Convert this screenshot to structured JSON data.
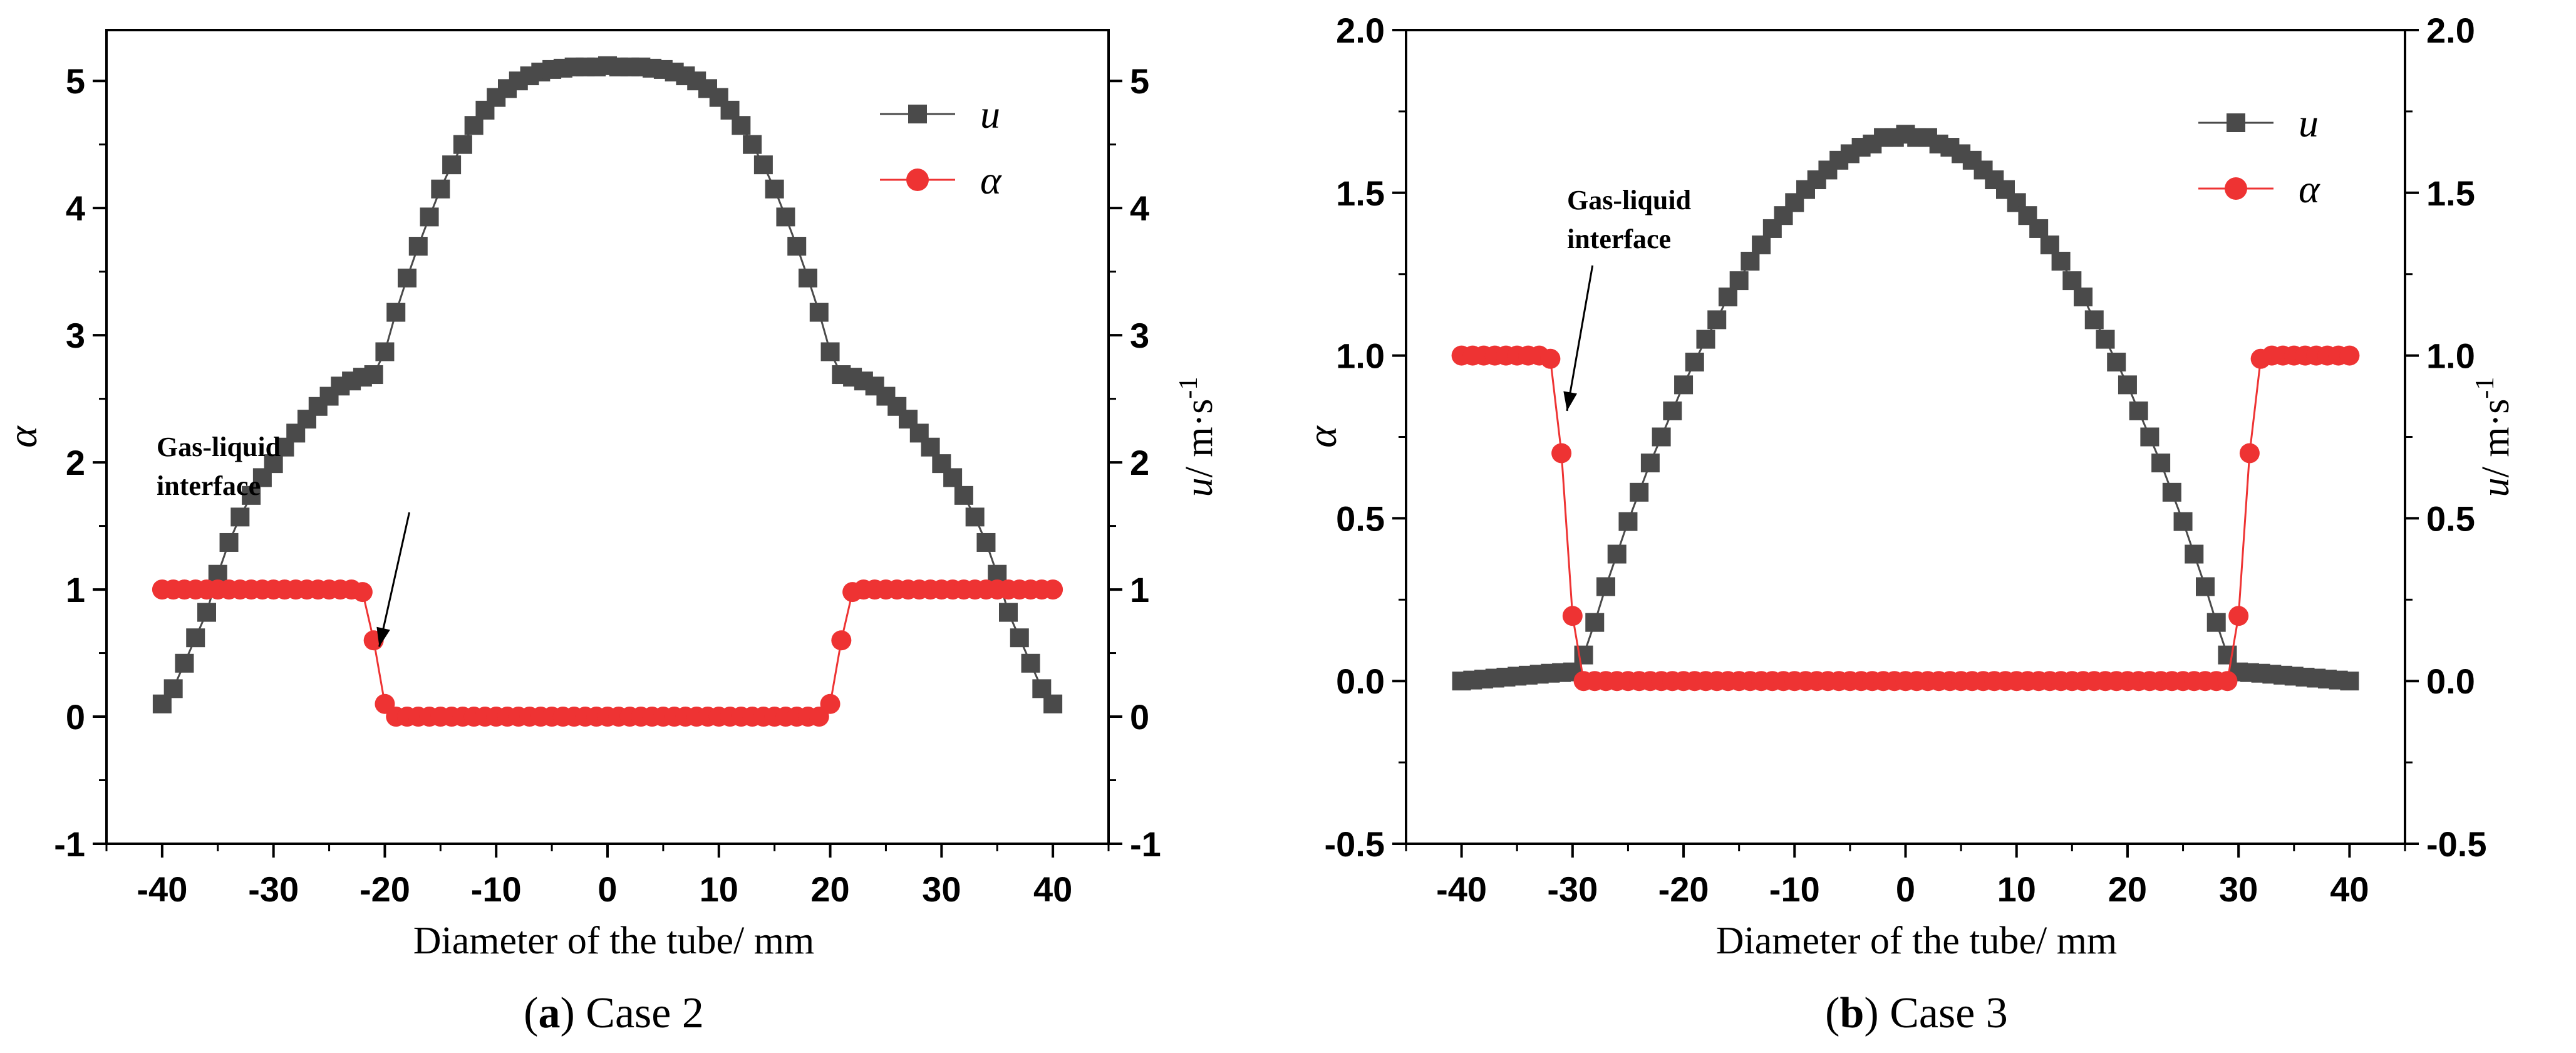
{
  "figure": {
    "panels": [
      "a",
      "b"
    ]
  },
  "chart_data": [
    {
      "type": "line",
      "panel_letter": "a",
      "caption_rest": " Case 2",
      "xlabel": "Diameter of the tube/ mm",
      "ylabel_left": "α",
      "ylabel_right_var": "u",
      "ylabel_right_unit": "/ m·s",
      "ylabel_right_exp": "-1",
      "xlim": [
        -45,
        45
      ],
      "ylim": [
        -1,
        5.4
      ],
      "xticks": [
        -40,
        -30,
        -20,
        -10,
        0,
        10,
        20,
        30,
        40
      ],
      "xtick_labels": [
        "-40",
        "-30",
        "-20",
        "-10",
        "0",
        "10",
        "20",
        "30",
        "40"
      ],
      "yticks": [
        -1,
        0,
        1,
        2,
        3,
        4,
        5
      ],
      "ytick_labels_left": [
        "-1",
        "0",
        "1",
        "2",
        "3",
        "4",
        "5"
      ],
      "ytick_labels_right": [
        "-1",
        "0",
        "1",
        "2",
        "3",
        "4",
        "5"
      ],
      "legend": [
        {
          "label": "u",
          "color": "#4a4a4a",
          "marker": "square"
        },
        {
          "label": "α",
          "color": "#ee3333",
          "marker": "circle"
        }
      ],
      "annotation": {
        "line1": "Gas-liquid",
        "line2": "interface",
        "x": -20.5,
        "y": 0.55
      },
      "series": [
        {
          "name": "u",
          "color": "#4a4a4a",
          "marker": "square",
          "x": [
            -40,
            -39,
            -38,
            -37,
            -36,
            -35,
            -34,
            -33,
            -32,
            -31,
            -30,
            -29,
            -28,
            -27,
            -26,
            -25,
            -24,
            -23,
            -22,
            -21,
            -20,
            -19,
            -18,
            -17,
            -16,
            -15,
            -14,
            -13,
            -12,
            -11,
            -10,
            -9,
            -8,
            -7,
            -6,
            -5,
            -4,
            -3,
            -2,
            -1,
            0,
            1,
            2,
            3,
            4,
            5,
            6,
            7,
            8,
            9,
            10,
            11,
            12,
            13,
            14,
            15,
            16,
            17,
            18,
            19,
            20,
            21,
            22,
            23,
            24,
            25,
            26,
            27,
            28,
            29,
            30,
            31,
            32,
            33,
            34,
            35,
            36,
            37,
            38,
            39,
            40
          ],
          "values": [
            0.1,
            0.22,
            0.42,
            0.62,
            0.82,
            1.12,
            1.37,
            1.57,
            1.74,
            1.88,
            1.99,
            2.12,
            2.23,
            2.34,
            2.44,
            2.52,
            2.6,
            2.64,
            2.67,
            2.69,
            2.87,
            3.18,
            3.45,
            3.7,
            3.93,
            4.15,
            4.34,
            4.5,
            4.65,
            4.77,
            4.87,
            4.94,
            5.0,
            5.04,
            5.07,
            5.09,
            5.1,
            5.11,
            5.11,
            5.11,
            5.12,
            5.11,
            5.11,
            5.11,
            5.1,
            5.09,
            5.07,
            5.04,
            5.0,
            4.94,
            4.87,
            4.77,
            4.65,
            4.5,
            4.34,
            4.15,
            3.93,
            3.7,
            3.45,
            3.18,
            2.87,
            2.69,
            2.67,
            2.64,
            2.6,
            2.52,
            2.44,
            2.34,
            2.23,
            2.12,
            1.99,
            1.88,
            1.74,
            1.57,
            1.37,
            1.12,
            0.82,
            0.62,
            0.42,
            0.22,
            0.1
          ]
        },
        {
          "name": "α",
          "color": "#ee3333",
          "marker": "circle",
          "x": [
            -40,
            -39,
            -38,
            -37,
            -36,
            -35,
            -34,
            -33,
            -32,
            -31,
            -30,
            -29,
            -28,
            -27,
            -26,
            -25,
            -24,
            -23,
            -22,
            -21,
            -20,
            -19,
            -18,
            -17,
            -16,
            -15,
            -14,
            -13,
            -12,
            -11,
            -10,
            -9,
            -8,
            -7,
            -6,
            -5,
            -4,
            -3,
            -2,
            -1,
            0,
            1,
            2,
            3,
            4,
            5,
            6,
            7,
            8,
            9,
            10,
            11,
            12,
            13,
            14,
            15,
            16,
            17,
            18,
            19,
            20,
            21,
            22,
            23,
            24,
            25,
            26,
            27,
            28,
            29,
            30,
            31,
            32,
            33,
            34,
            35,
            36,
            37,
            38,
            39,
            40
          ],
          "values": [
            1,
            1,
            1,
            1,
            1,
            1,
            1,
            1,
            1,
            1,
            1,
            1,
            1,
            1,
            1,
            1,
            1,
            1,
            0.98,
            0.6,
            0.1,
            0,
            0,
            0,
            0,
            0,
            0,
            0,
            0,
            0,
            0,
            0,
            0,
            0,
            0,
            0,
            0,
            0,
            0,
            0,
            0,
            0,
            0,
            0,
            0,
            0,
            0,
            0,
            0,
            0,
            0,
            0,
            0,
            0,
            0,
            0,
            0,
            0,
            0,
            0,
            0.1,
            0.6,
            0.98,
            1,
            1,
            1,
            1,
            1,
            1,
            1,
            1,
            1,
            1,
            1,
            1,
            1,
            1,
            1,
            1,
            1,
            1
          ]
        }
      ]
    },
    {
      "type": "line",
      "panel_letter": "b",
      "caption_rest": " Case 3",
      "xlabel": "Diameter of the tube/ mm",
      "ylabel_left": "α",
      "ylabel_right_var": "u",
      "ylabel_right_unit": "/ m·s",
      "ylabel_right_exp": "-1",
      "xlim": [
        -45,
        45
      ],
      "ylim": [
        -0.5,
        2.0
      ],
      "xticks": [
        -40,
        -30,
        -20,
        -10,
        0,
        10,
        20,
        30,
        40
      ],
      "xtick_labels": [
        "-40",
        "-30",
        "-20",
        "-10",
        "0",
        "10",
        "20",
        "30",
        "40"
      ],
      "yticks": [
        -0.5,
        0.0,
        0.5,
        1.0,
        1.5,
        2.0
      ],
      "ytick_labels_left": [
        "-0.5",
        "0.0",
        "0.5",
        "1.0",
        "1.5",
        "2.0"
      ],
      "ytick_labels_right": [
        "-0.5",
        "0.0",
        "0.5",
        "1.0",
        "1.5",
        "2.0"
      ],
      "legend": [
        {
          "label": "u",
          "color": "#4a4a4a",
          "marker": "square"
        },
        {
          "label": "α",
          "color": "#ee3333",
          "marker": "circle"
        }
      ],
      "annotation": {
        "line1": "Gas-liquid",
        "line2": "interface",
        "x": -30.5,
        "y": 0.83
      },
      "series": [
        {
          "name": "u",
          "color": "#4a4a4a",
          "marker": "square",
          "x": [
            -40,
            -39,
            -38,
            -37,
            -36,
            -35,
            -34,
            -33,
            -32,
            -31,
            -30,
            -29,
            -28,
            -27,
            -26,
            -25,
            -24,
            -23,
            -22,
            -21,
            -20,
            -19,
            -18,
            -17,
            -16,
            -15,
            -14,
            -13,
            -12,
            -11,
            -10,
            -9,
            -8,
            -7,
            -6,
            -5,
            -4,
            -3,
            -2,
            -1,
            0,
            1,
            2,
            3,
            4,
            5,
            6,
            7,
            8,
            9,
            10,
            11,
            12,
            13,
            14,
            15,
            16,
            17,
            18,
            19,
            20,
            21,
            22,
            23,
            24,
            25,
            26,
            27,
            28,
            29,
            30,
            31,
            32,
            33,
            34,
            35,
            36,
            37,
            38,
            39,
            40
          ],
          "values": [
            0.0,
            0.003,
            0.006,
            0.009,
            0.012,
            0.015,
            0.018,
            0.021,
            0.024,
            0.026,
            0.028,
            0.08,
            0.18,
            0.29,
            0.39,
            0.49,
            0.58,
            0.67,
            0.75,
            0.83,
            0.91,
            0.98,
            1.05,
            1.11,
            1.18,
            1.23,
            1.29,
            1.34,
            1.39,
            1.43,
            1.47,
            1.51,
            1.54,
            1.57,
            1.6,
            1.62,
            1.64,
            1.65,
            1.67,
            1.67,
            1.68,
            1.67,
            1.67,
            1.65,
            1.64,
            1.62,
            1.6,
            1.57,
            1.54,
            1.51,
            1.47,
            1.43,
            1.39,
            1.34,
            1.29,
            1.23,
            1.18,
            1.11,
            1.05,
            0.98,
            0.91,
            0.83,
            0.75,
            0.67,
            0.58,
            0.49,
            0.39,
            0.29,
            0.18,
            0.08,
            0.028,
            0.026,
            0.024,
            0.021,
            0.018,
            0.015,
            0.012,
            0.009,
            0.006,
            0.003,
            0.0
          ]
        },
        {
          "name": "α",
          "color": "#ee3333",
          "marker": "circle",
          "x": [
            -40,
            -39,
            -38,
            -37,
            -36,
            -35,
            -34,
            -33,
            -32,
            -31,
            -30,
            -29,
            -28,
            -27,
            -26,
            -25,
            -24,
            -23,
            -22,
            -21,
            -20,
            -19,
            -18,
            -17,
            -16,
            -15,
            -14,
            -13,
            -12,
            -11,
            -10,
            -9,
            -8,
            -7,
            -6,
            -5,
            -4,
            -3,
            -2,
            -1,
            0,
            1,
            2,
            3,
            4,
            5,
            6,
            7,
            8,
            9,
            10,
            11,
            12,
            13,
            14,
            15,
            16,
            17,
            18,
            19,
            20,
            21,
            22,
            23,
            24,
            25,
            26,
            27,
            28,
            29,
            30,
            31,
            32,
            33,
            34,
            35,
            36,
            37,
            38,
            39,
            40
          ],
          "values": [
            1,
            1,
            1,
            1,
            1,
            1,
            1,
            1,
            0.99,
            0.7,
            0.2,
            0,
            0,
            0,
            0,
            0,
            0,
            0,
            0,
            0,
            0,
            0,
            0,
            0,
            0,
            0,
            0,
            0,
            0,
            0,
            0,
            0,
            0,
            0,
            0,
            0,
            0,
            0,
            0,
            0,
            0,
            0,
            0,
            0,
            0,
            0,
            0,
            0,
            0,
            0,
            0,
            0,
            0,
            0,
            0,
            0,
            0,
            0,
            0,
            0,
            0,
            0,
            0,
            0,
            0,
            0,
            0,
            0,
            0,
            0,
            0.2,
            0.7,
            0.99,
            1,
            1,
            1,
            1,
            1,
            1,
            1,
            1
          ]
        }
      ]
    }
  ]
}
